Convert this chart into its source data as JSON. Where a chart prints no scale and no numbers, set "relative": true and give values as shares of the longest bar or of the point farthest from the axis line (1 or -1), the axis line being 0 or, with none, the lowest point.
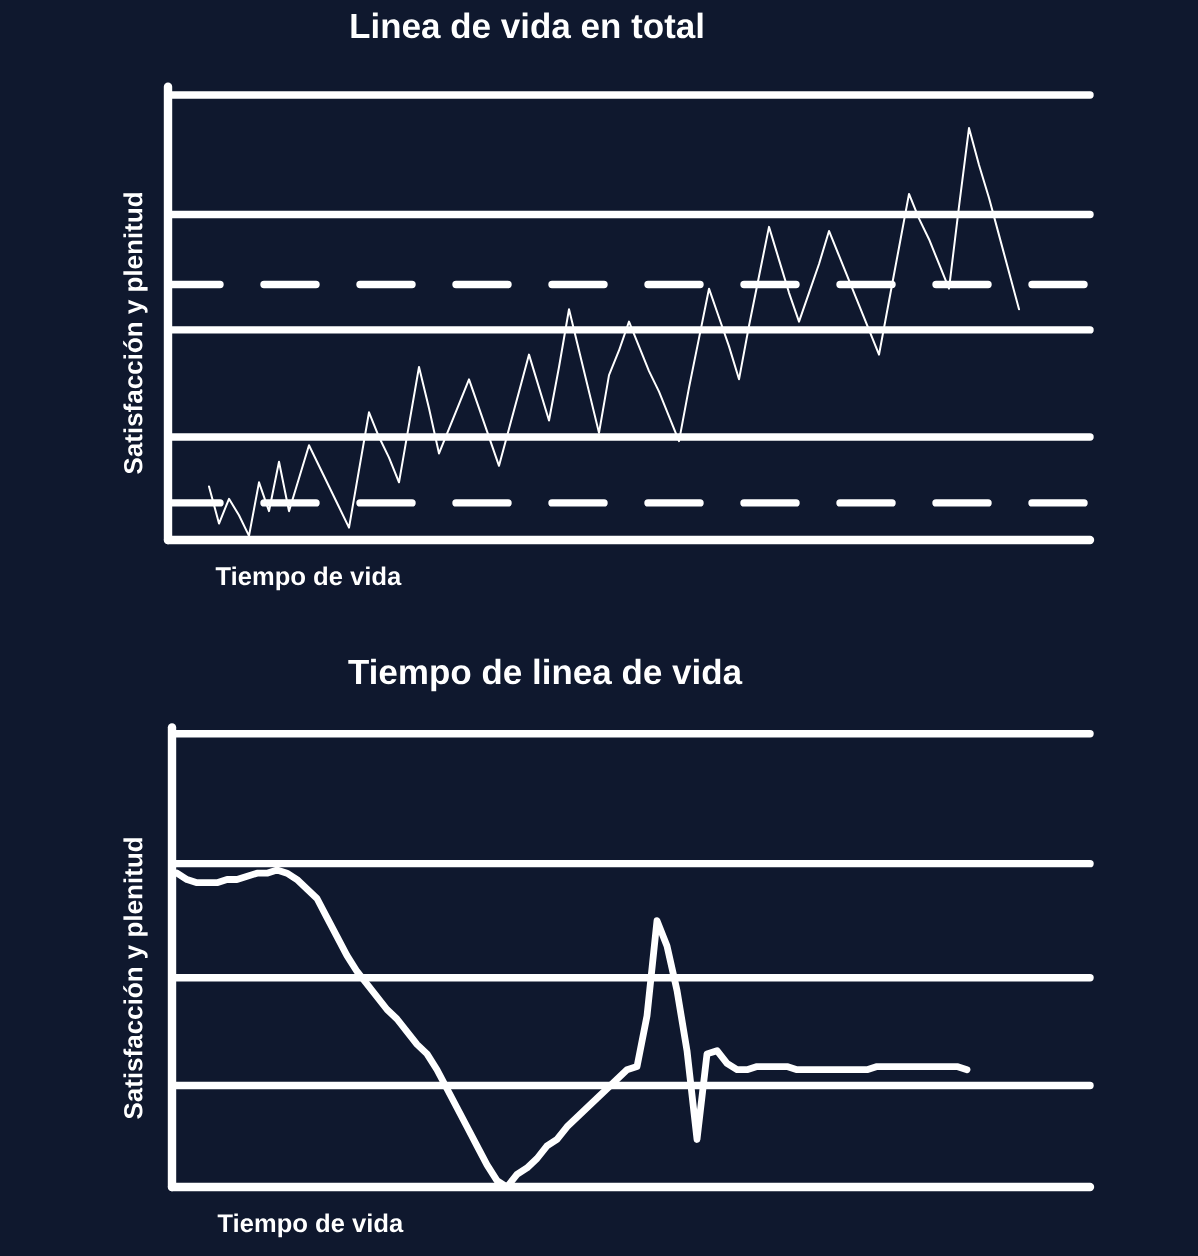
{
  "chart_data": [
    {
      "type": "line",
      "title": "Linea de vida en total",
      "xlabel": "Tiempo de vida",
      "ylabel": "Satisfacción y plenitud",
      "relative": true,
      "categories": [
        null,
        null,
        null,
        null,
        null,
        null,
        null,
        null,
        null,
        null,
        null,
        null,
        null,
        null,
        null,
        null,
        null,
        null,
        null,
        null,
        null,
        null,
        null,
        null,
        null,
        null,
        null,
        null,
        null,
        null,
        null,
        null,
        null,
        null,
        null,
        null,
        null,
        null,
        null,
        null,
        null,
        null,
        null,
        null,
        null,
        null,
        null,
        null,
        null,
        null,
        null,
        null,
        null,
        null,
        null,
        null,
        null,
        null,
        null,
        null,
        null,
        null,
        null,
        null,
        null,
        null,
        null,
        null,
        null,
        null,
        null,
        null,
        null,
        null,
        null,
        null,
        null,
        null,
        null,
        null,
        null,
        null
      ],
      "values": [
        0.13,
        0.04,
        0.1,
        0.06,
        0.01,
        0.14,
        0.07,
        0.19,
        0.07,
        0.15,
        0.23,
        0.18,
        0.13,
        0.08,
        0.03,
        0.17,
        0.31,
        0.25,
        0.2,
        0.14,
        0.28,
        0.42,
        0.32,
        0.21,
        0.27,
        0.33,
        0.39,
        0.32,
        0.25,
        0.18,
        0.27,
        0.36,
        0.45,
        0.37,
        0.29,
        0.42,
        0.56,
        0.46,
        0.36,
        0.26,
        0.4,
        0.46,
        0.53,
        0.47,
        0.41,
        0.36,
        0.3,
        0.24,
        0.37,
        0.49,
        0.61,
        0.54,
        0.47,
        0.39,
        0.52,
        0.64,
        0.76,
        0.68,
        0.6,
        0.53,
        0.6,
        0.67,
        0.75,
        0.69,
        0.63,
        0.57,
        0.51,
        0.45,
        0.58,
        0.71,
        0.84,
        0.78,
        0.73,
        0.67,
        0.61,
        0.81,
        1,
        0.91,
        0.83,
        0.74,
        0.65,
        0.56
      ],
      "color": "#ffffff",
      "ref_lines": [
        {
          "axis": "y",
          "value": 1.08,
          "color": "#ffffff"
        },
        {
          "axis": "y",
          "value": 0.79,
          "color": "#ffffff"
        },
        {
          "axis": "y",
          "value": 0.62,
          "color": "#ffffff",
          "line_style": "dashed"
        },
        {
          "axis": "y",
          "value": 0.51,
          "color": "#ffffff"
        },
        {
          "axis": "y",
          "value": 0.25,
          "color": "#ffffff"
        },
        {
          "axis": "y",
          "value": 0.09,
          "color": "#ffffff",
          "line_style": "dashed"
        }
      ]
    },
    {
      "type": "line",
      "title": "Tiempo de linea de vida",
      "xlabel": "Tiempo de vida",
      "ylabel": "Satisfacción y plenitud",
      "relative": true,
      "categories": [
        null,
        null,
        null,
        null,
        null,
        null,
        null,
        null,
        null,
        null,
        null,
        null,
        null,
        null,
        null,
        null,
        null,
        null,
        null,
        null,
        null,
        null,
        null,
        null,
        null,
        null,
        null,
        null,
        null,
        null,
        null,
        null,
        null,
        null,
        null,
        null,
        null,
        null,
        null,
        null,
        null,
        null,
        null,
        null,
        null,
        null,
        null,
        null,
        null,
        null,
        null,
        null,
        null,
        null,
        null,
        null,
        null,
        null,
        null,
        null,
        null,
        null,
        null,
        null,
        null,
        null,
        null,
        null,
        null,
        null,
        null,
        null,
        null,
        null,
        null,
        null,
        null,
        null,
        null,
        null
      ],
      "values": [
        0.99,
        0.97,
        0.96,
        0.96,
        0.96,
        0.97,
        0.97,
        0.98,
        0.99,
        0.99,
        1,
        0.99,
        0.97,
        0.94,
        0.91,
        0.85,
        0.79,
        0.73,
        0.68,
        0.64,
        0.6,
        0.56,
        0.53,
        0.49,
        0.45,
        0.42,
        0.37,
        0.31,
        0.25,
        0.19,
        0.13,
        0.07,
        0.02,
        0,
        0.04,
        0.06,
        0.09,
        0.13,
        0.15,
        0.19,
        0.22,
        0.25,
        0.28,
        0.31,
        0.34,
        0.37,
        0.38,
        0.54,
        0.84,
        0.76,
        0.62,
        0.43,
        0.15,
        0.42,
        0.43,
        0.39,
        0.37,
        0.37,
        0.38,
        0.38,
        0.38,
        0.38,
        0.37,
        0.37,
        0.37,
        0.37,
        0.37,
        0.37,
        0.37,
        0.37,
        0.38,
        0.38,
        0.38,
        0.38,
        0.38,
        0.38,
        0.38,
        0.38,
        0.38,
        0.37
      ],
      "color": "#ffffff",
      "ref_lines": [
        {
          "axis": "y",
          "value": 1.43,
          "color": "#ffffff"
        },
        {
          "axis": "y",
          "value": 1.02,
          "color": "#ffffff"
        },
        {
          "axis": "y",
          "value": 0.66,
          "color": "#ffffff"
        },
        {
          "axis": "y",
          "value": 0.32,
          "color": "#ffffff"
        }
      ]
    }
  ]
}
